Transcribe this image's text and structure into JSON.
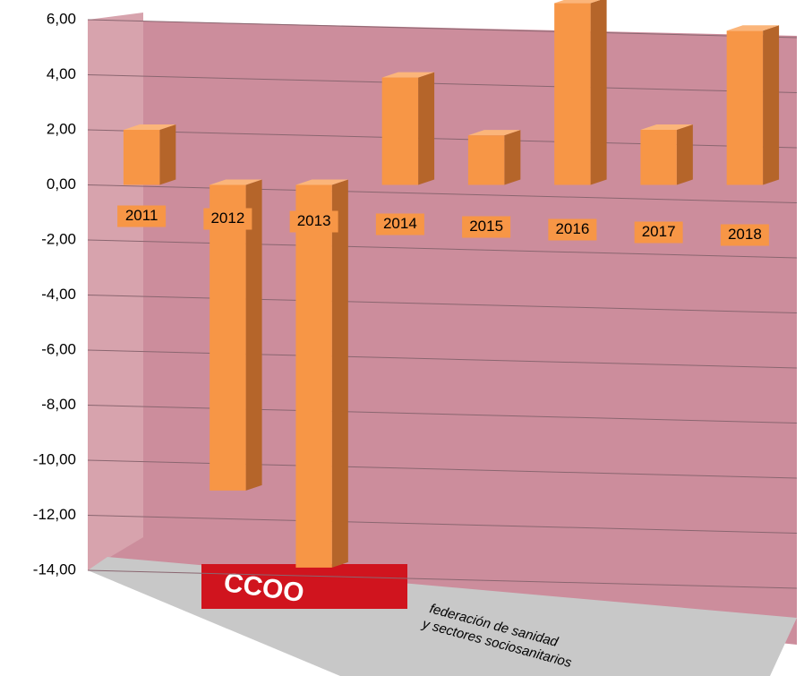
{
  "chart_data": {
    "type": "bar",
    "categories": [
      "2011",
      "2012",
      "2013",
      "2014",
      "2015",
      "2016",
      "2017",
      "2018"
    ],
    "values": [
      2.0,
      -11.1,
      -13.9,
      3.9,
      1.8,
      6.6,
      2.0,
      5.6
    ],
    "color": "#f79646",
    "ylim": [
      -14,
      6
    ],
    "yticks": [
      {
        "value": 6,
        "label": "6,00"
      },
      {
        "value": 4,
        "label": "4,00"
      },
      {
        "value": 2,
        "label": "2,00"
      },
      {
        "value": 0,
        "label": "0,00"
      },
      {
        "value": -2,
        "label": "-2,00"
      },
      {
        "value": -4,
        "label": "-4,00"
      },
      {
        "value": -6,
        "label": "-6,00"
      },
      {
        "value": -8,
        "label": "-8,00"
      },
      {
        "value": -10,
        "label": "-10,00"
      },
      {
        "value": -12,
        "label": "-12,00"
      },
      {
        "value": -14,
        "label": "-14,00"
      }
    ],
    "grid": true,
    "annotations": [
      "CCOO",
      "federación de sanidad",
      "y sectores sociosanitarios"
    ]
  }
}
